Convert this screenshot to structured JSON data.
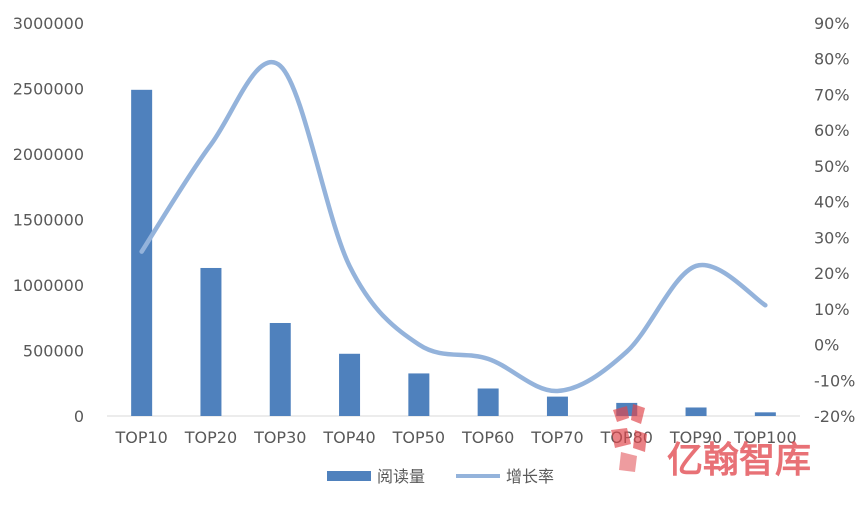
{
  "chart_data": {
    "type": "bar+line",
    "categories": [
      "TOP10",
      "TOP20",
      "TOP30",
      "TOP40",
      "TOP50",
      "TOP60",
      "TOP70",
      "TOP80",
      "TOP90",
      "TOP100"
    ],
    "series": [
      {
        "name": "阅读量",
        "type": "bar",
        "axis": "left",
        "color": "#4f81bd",
        "values": [
          2490000,
          1130000,
          710000,
          475000,
          325000,
          210000,
          148000,
          100000,
          65000,
          28000
        ]
      },
      {
        "name": "增长率",
        "type": "line",
        "axis": "right",
        "color": "#94b3db",
        "smooth": true,
        "values": [
          0.26,
          0.56,
          0.78,
          0.22,
          0.0,
          -0.04,
          -0.13,
          -0.02,
          0.22,
          0.11
        ]
      }
    ],
    "y_left": {
      "min": 0,
      "max": 3000000,
      "step": 500000,
      "ticks": [
        "0",
        "500000",
        "1000000",
        "1500000",
        "2000000",
        "2500000",
        "3000000"
      ]
    },
    "y_right": {
      "min": -0.2,
      "max": 0.9,
      "step": 0.1,
      "ticks": [
        "-20%",
        "-10%",
        "0%",
        "10%",
        "20%",
        "30%",
        "40%",
        "50%",
        "60%",
        "70%",
        "80%",
        "90%"
      ]
    },
    "legend_position": "bottom",
    "grid": false
  },
  "watermark": {
    "text": "亿翰智库"
  }
}
